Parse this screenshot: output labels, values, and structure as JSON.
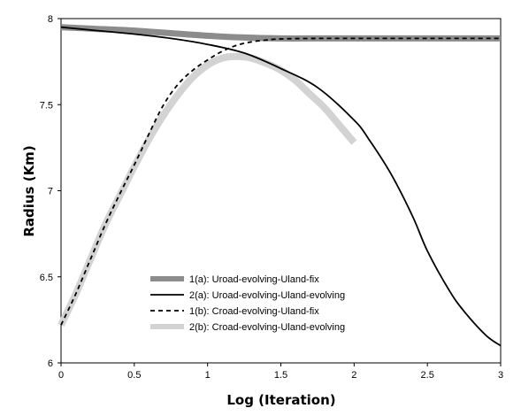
{
  "chart_data": {
    "type": "line",
    "title": "",
    "xlabel": "Log (Iteration)",
    "ylabel": "Radius (Km)",
    "xlim": [
      0,
      3
    ],
    "ylim": [
      6,
      8
    ],
    "xticks": [
      "0",
      "0.5",
      "1",
      "1.5",
      "2",
      "2.5",
      "3"
    ],
    "yticks": [
      "6",
      "6.5",
      "7",
      "7.5",
      "8"
    ],
    "grid": false,
    "legend_position": "lower-left",
    "series": [
      {
        "name": "1(a): Uroad-evolving-Uland-fix",
        "style": "thick-gray",
        "color": "#8c8c8c",
        "x": [
          0,
          0.25,
          0.5,
          0.75,
          1.0,
          1.25,
          1.5,
          1.75,
          2.0,
          2.5,
          3.0
        ],
        "y": [
          7.95,
          7.94,
          7.93,
          7.915,
          7.9,
          7.89,
          7.885,
          7.885,
          7.885,
          7.885,
          7.885
        ]
      },
      {
        "name": "2(a): Uroad-evolving-Uland-evolving",
        "style": "solid-black",
        "color": "#000000",
        "x": [
          0,
          0.25,
          0.5,
          0.75,
          1.0,
          1.25,
          1.5,
          1.75,
          2.0,
          2.1,
          2.25,
          2.4,
          2.5,
          2.65,
          2.75,
          2.9,
          3.0
        ],
        "y": [
          7.95,
          7.93,
          7.91,
          7.885,
          7.85,
          7.8,
          7.71,
          7.6,
          7.41,
          7.3,
          7.1,
          6.85,
          6.65,
          6.42,
          6.3,
          6.16,
          6.1
        ]
      },
      {
        "name": "1(b): Croad-evolving-Uland-fix",
        "style": "dashed-black",
        "color": "#000000",
        "x": [
          0,
          0.1,
          0.2,
          0.3,
          0.4,
          0.5,
          0.6,
          0.7,
          0.8,
          0.9,
          1.0,
          1.1,
          1.2,
          1.3,
          1.4,
          1.5,
          1.75,
          2.0,
          2.5,
          3.0
        ],
        "y": [
          6.22,
          6.4,
          6.6,
          6.8,
          6.98,
          7.15,
          7.33,
          7.5,
          7.62,
          7.7,
          7.76,
          7.81,
          7.845,
          7.865,
          7.875,
          7.882,
          7.885,
          7.885,
          7.885,
          7.885
        ]
      },
      {
        "name": "2(b): Croad-evolving-Uland-evolving",
        "style": "thick-lightgray",
        "color": "#d3d3d3",
        "x": [
          0,
          0.1,
          0.2,
          0.3,
          0.4,
          0.5,
          0.6,
          0.7,
          0.8,
          0.9,
          1.0,
          1.1,
          1.2,
          1.3,
          1.4,
          1.5,
          1.6,
          1.7,
          1.8,
          1.9,
          2.0
        ],
        "y": [
          6.22,
          6.4,
          6.6,
          6.8,
          6.97,
          7.14,
          7.3,
          7.44,
          7.56,
          7.66,
          7.73,
          7.77,
          7.78,
          7.77,
          7.74,
          7.7,
          7.64,
          7.56,
          7.48,
          7.38,
          7.28
        ]
      }
    ]
  }
}
